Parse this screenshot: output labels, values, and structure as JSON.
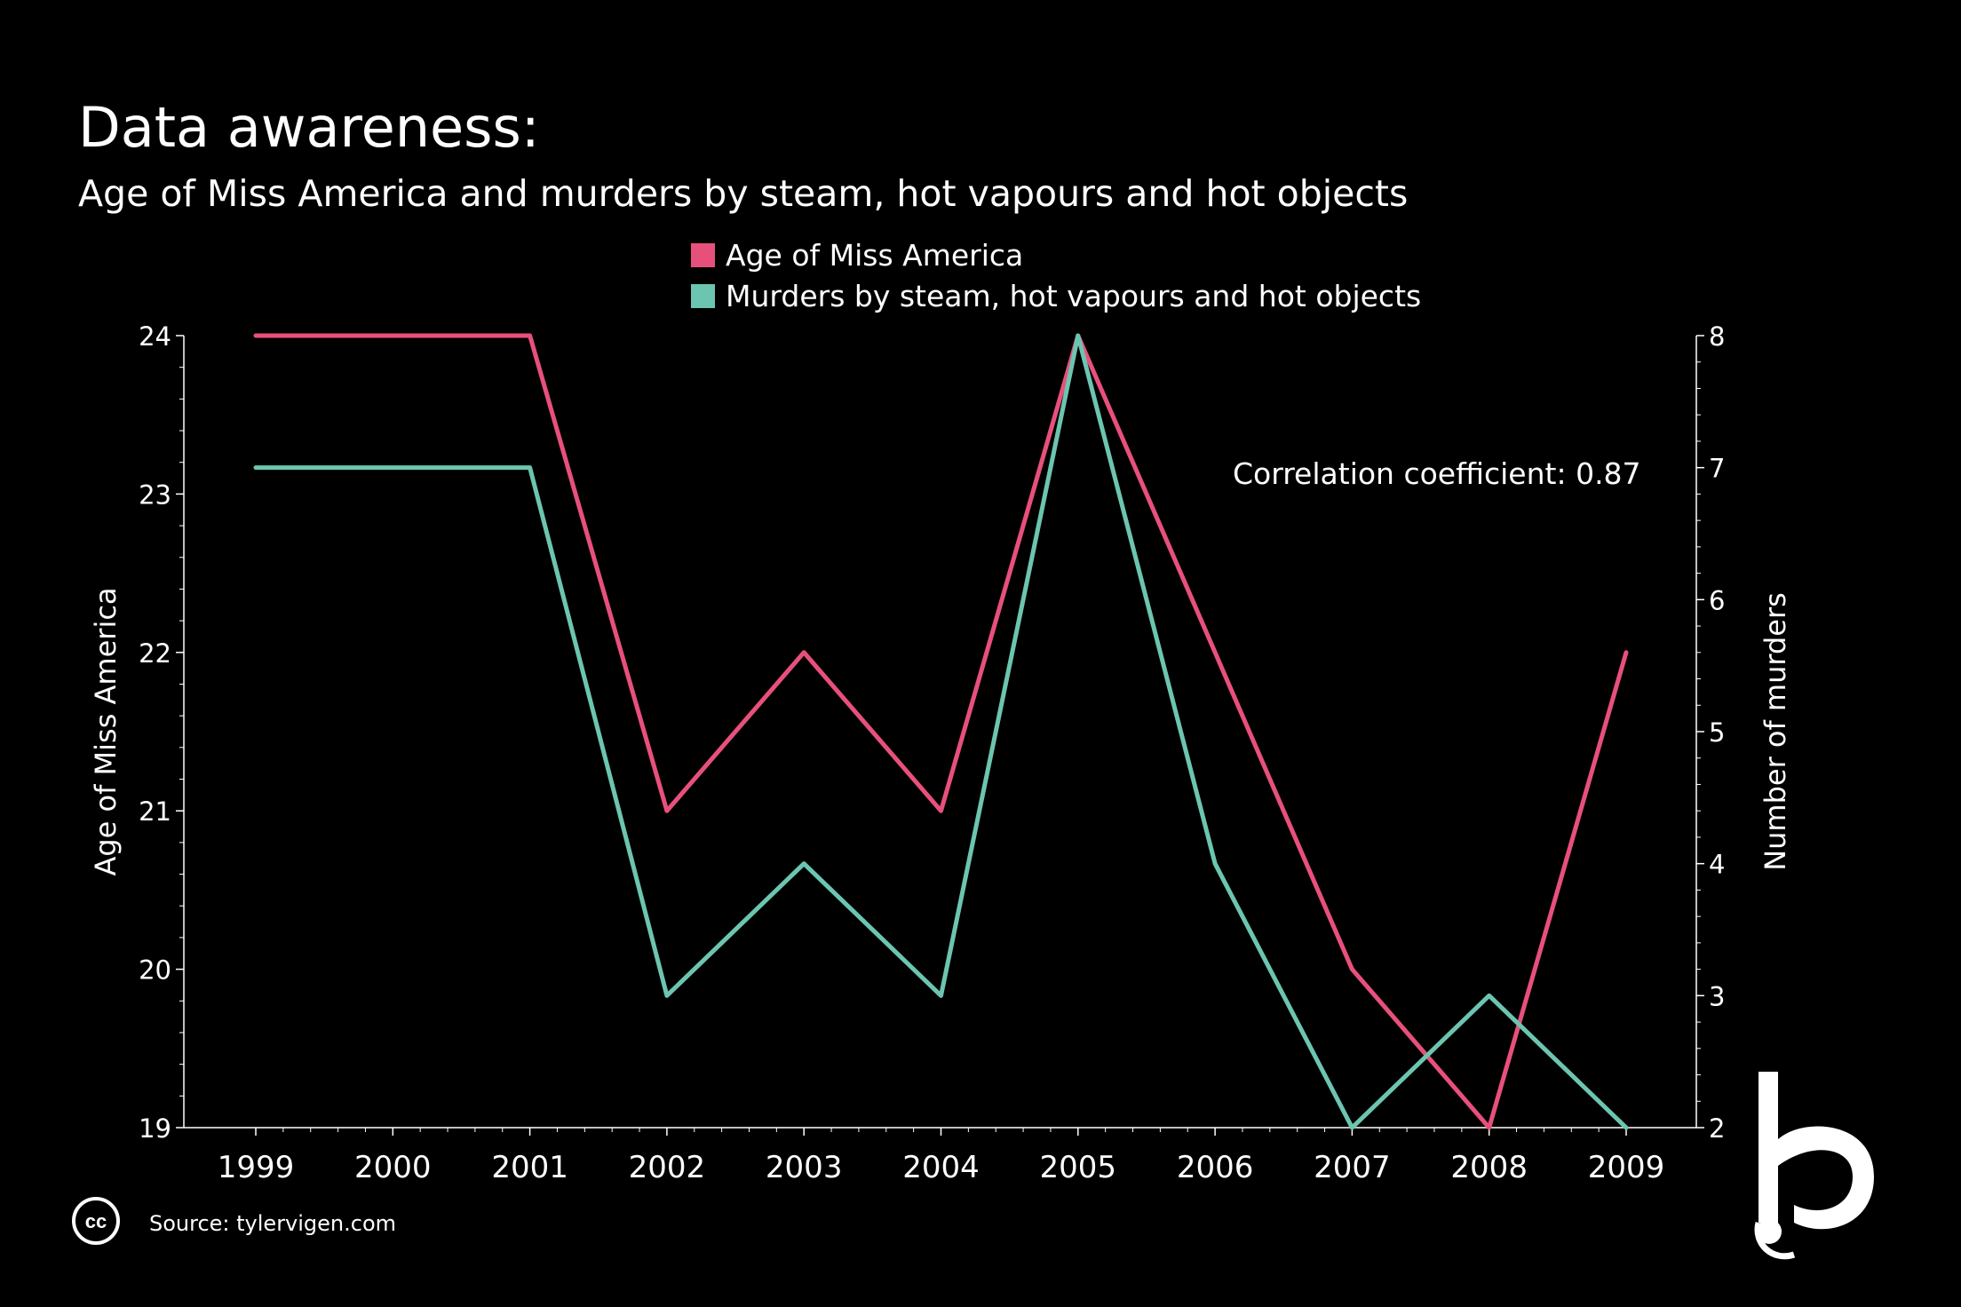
{
  "title": "Data awareness:",
  "subtitle": "Age of Miss America and murders by steam, hot vapours and hot objects",
  "legend": [
    {
      "label": "Age of Miss America",
      "color": "#e8507c"
    },
    {
      "label": "Murders by steam, hot vapours and hot objects",
      "color": "#6cc5b0"
    }
  ],
  "annotation": "Correlation coefficient: 0.87",
  "source": "Source: tylervigen.com",
  "cc_label": "cc",
  "chart_data": {
    "type": "line",
    "x": [
      "1999",
      "2000",
      "2001",
      "2002",
      "2003",
      "2004",
      "2005",
      "2006",
      "2007",
      "2008",
      "2009"
    ],
    "series": [
      {
        "name": "Age of Miss America",
        "axis": "left",
        "color": "#e8507c",
        "x": [
          "1999",
          "2001",
          "2002",
          "2003",
          "2004",
          "2005",
          "2006",
          "2007",
          "2008",
          "2009"
        ],
        "values": [
          24,
          24,
          21,
          22,
          21,
          24,
          22,
          20,
          19,
          22
        ]
      },
      {
        "name": "Murders by steam, hot vapours and hot objects",
        "axis": "right",
        "color": "#6cc5b0",
        "x": [
          "1999",
          "2001",
          "2002",
          "2003",
          "2004",
          "2005",
          "2006",
          "2007",
          "2008",
          "2009"
        ],
        "values": [
          7,
          7,
          3,
          4,
          3,
          8,
          4,
          2,
          3,
          2
        ]
      }
    ],
    "ylabel_left": "Age of Miss America",
    "ylabel_right": "Number of murders",
    "ylim_left": [
      19,
      24
    ],
    "ylim_right": [
      2,
      8
    ],
    "yticks_left": [
      19,
      20,
      21,
      22,
      23,
      24
    ],
    "yticks_right": [
      2,
      3,
      4,
      5,
      6,
      7,
      8
    ],
    "grid": false,
    "legend_position": "top-center"
  }
}
